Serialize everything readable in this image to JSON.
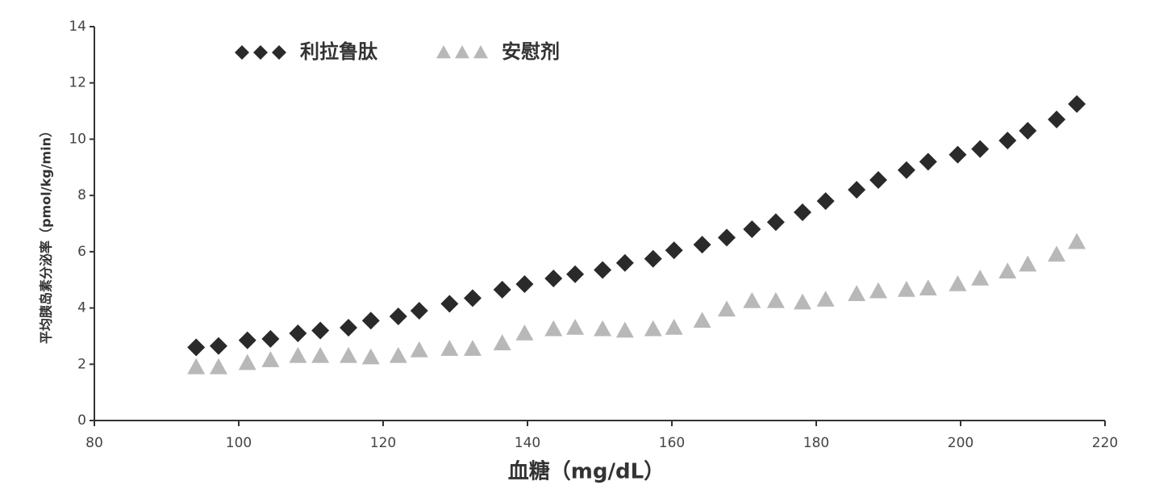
{
  "chart_data": {
    "type": "scatter",
    "x_label": "血糖（mg/dL）",
    "y_label": "平均胰岛素分泌率（pmol/kg/min）",
    "xlim": [
      80,
      220
    ],
    "xticks": [
      80,
      100,
      120,
      140,
      160,
      180,
      200,
      220
    ],
    "ylim": [
      0,
      14
    ],
    "yticks": [
      0,
      2,
      4,
      6,
      8,
      10,
      12,
      14
    ],
    "series": [
      {
        "name": "利拉鲁肽",
        "color": "#2a2a2a",
        "marker": "diamond",
        "x": [
          94.1,
          97.2,
          101.2,
          104.4,
          108.2,
          111.3,
          115.2,
          118.3,
          122.1,
          125.0,
          129.2,
          132.4,
          136.5,
          139.6,
          143.6,
          146.6,
          150.4,
          153.5,
          157.4,
          160.3,
          164.2,
          167.6,
          171.1,
          174.4,
          178.1,
          181.3,
          185.6,
          188.6,
          192.5,
          195.5,
          199.6,
          202.7,
          206.5,
          209.3,
          213.3,
          216.1
        ],
        "values": [
          2.6,
          2.65,
          2.85,
          2.9,
          3.1,
          3.2,
          3.3,
          3.55,
          3.7,
          3.9,
          4.15,
          4.35,
          4.65,
          4.85,
          5.05,
          5.2,
          5.35,
          5.6,
          5.75,
          6.05,
          6.25,
          6.5,
          6.8,
          7.05,
          7.4,
          7.8,
          8.2,
          8.55,
          8.9,
          9.2,
          9.45,
          9.65,
          9.95,
          10.3,
          10.7,
          11.25
        ]
      },
      {
        "name": "安慰剂",
        "color": "#b8b8b8",
        "marker": "triangle",
        "x": [
          94.1,
          97.2,
          101.2,
          104.4,
          108.2,
          111.3,
          115.2,
          118.3,
          122.1,
          125.0,
          129.2,
          132.4,
          136.5,
          139.6,
          143.6,
          146.6,
          150.4,
          153.5,
          157.4,
          160.3,
          164.2,
          167.6,
          171.1,
          174.4,
          178.1,
          181.3,
          185.6,
          188.6,
          192.5,
          195.5,
          199.6,
          202.7,
          206.5,
          209.3,
          213.3,
          216.1
        ],
        "values": [
          1.9,
          1.9,
          2.05,
          2.15,
          2.3,
          2.3,
          2.3,
          2.25,
          2.3,
          2.5,
          2.55,
          2.55,
          2.75,
          3.1,
          3.25,
          3.3,
          3.25,
          3.2,
          3.25,
          3.3,
          3.55,
          3.95,
          4.25,
          4.25,
          4.2,
          4.3,
          4.5,
          4.6,
          4.65,
          4.7,
          4.85,
          5.05,
          5.3,
          5.55,
          5.9,
          6.35
        ]
      }
    ]
  }
}
